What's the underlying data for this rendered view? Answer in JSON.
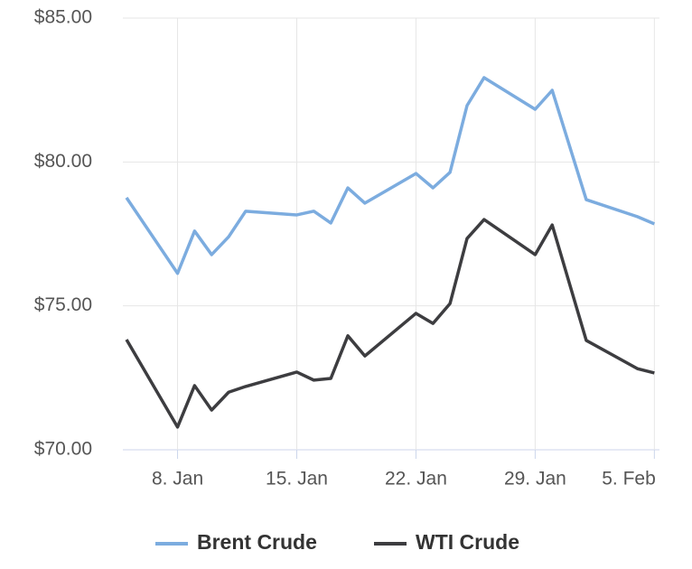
{
  "chart_data": {
    "type": "line",
    "x": [
      5,
      8,
      9,
      10,
      11,
      12,
      15,
      16,
      17,
      18,
      19,
      22,
      23,
      24,
      25,
      26,
      29,
      30,
      32,
      35,
      36
    ],
    "series": [
      {
        "name": "Brent Crude",
        "color": "#7cacdf",
        "values": [
          78.76,
          76.13,
          77.6,
          76.78,
          77.4,
          78.29,
          78.16,
          78.29,
          77.88,
          79.1,
          78.57,
          79.6,
          79.1,
          79.64,
          81.96,
          82.93,
          81.83,
          82.49,
          78.69,
          78.1,
          77.85
        ]
      },
      {
        "name": "WTI Crude",
        "color": "#3d3d40",
        "values": [
          73.83,
          70.79,
          72.23,
          71.38,
          72.0,
          72.2,
          72.7,
          72.42,
          72.48,
          73.96,
          73.26,
          74.74,
          74.39,
          75.08,
          77.34,
          78.0,
          76.78,
          77.81,
          73.8,
          72.82,
          72.67
        ]
      }
    ],
    "xlim": [
      5,
      36.3
    ],
    "xticks": [
      {
        "value": 8,
        "label": "8. Jan"
      },
      {
        "value": 15,
        "label": "15. Jan"
      },
      {
        "value": 22,
        "label": "22. Jan"
      },
      {
        "value": 29,
        "label": "29. Jan"
      },
      {
        "value": 36,
        "label": "5. Feb"
      }
    ],
    "ylim": [
      70,
      85
    ],
    "yticks": [
      {
        "value": 70,
        "label": "$70.00"
      },
      {
        "value": 75,
        "label": "$75.00"
      },
      {
        "value": 80,
        "label": "$80.00"
      },
      {
        "value": 85,
        "label": "$85.00"
      }
    ],
    "grid": true,
    "legend": "bottom"
  }
}
